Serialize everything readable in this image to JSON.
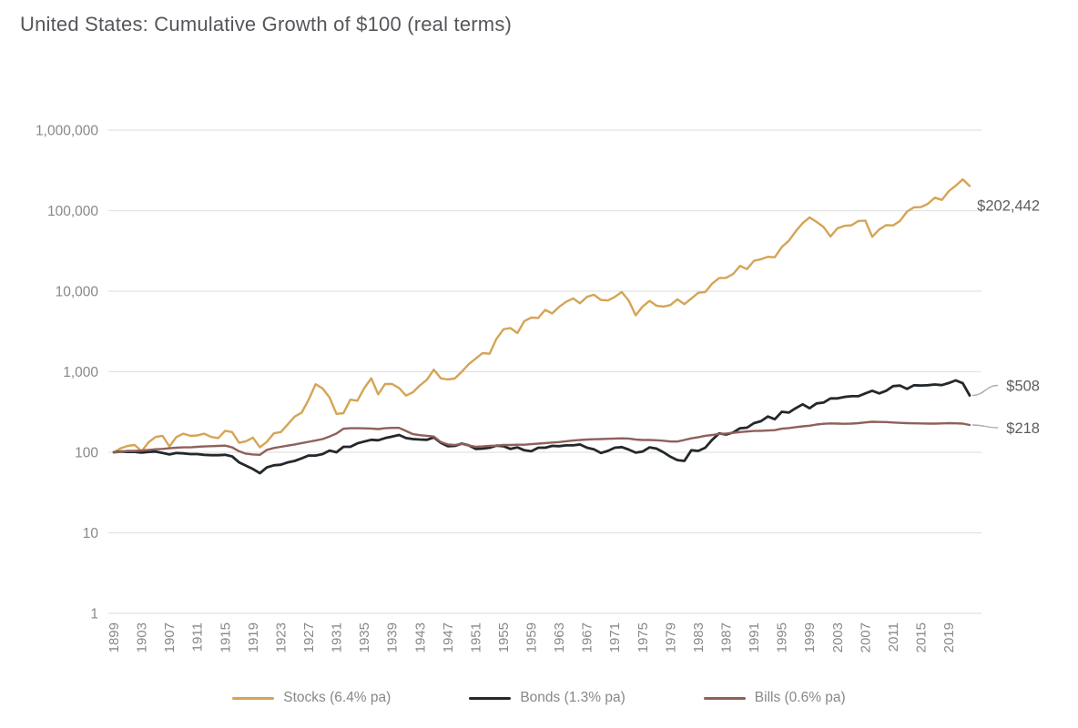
{
  "header": {
    "title": "United States: Cumulative Growth of $100 (real terms)"
  },
  "chart_data": {
    "type": "line",
    "title": "United States: Cumulative Growth of $100 (real terms)",
    "scale_y": "log",
    "grid": "horizontal-only",
    "legend_position": "bottom",
    "xlabel": "",
    "ylabel": "",
    "x_range": [
      1899,
      2022
    ],
    "x_tick_labels": [
      "1899",
      "1903",
      "1907",
      "1911",
      "1915",
      "1919",
      "1923",
      "1927",
      "1931",
      "1935",
      "1939",
      "1943",
      "1947",
      "1951",
      "1955",
      "1959",
      "1963",
      "1967",
      "1971",
      "1975",
      "1979",
      "1983",
      "1987",
      "1991",
      "1995",
      "1999",
      "2003",
      "2007",
      "2011",
      "2015",
      "2019"
    ],
    "y_tick_values": [
      1,
      10,
      100,
      1000,
      10000,
      100000,
      1000000
    ],
    "y_tick_labels": [
      "1",
      "10",
      "100",
      "1,000",
      "10,000",
      "100,000",
      "1,000,000"
    ],
    "ylim": [
      1,
      1000000
    ],
    "start_value": 100,
    "series": [
      {
        "name": "Stocks",
        "label": "Stocks (6.4% pa)",
        "rate": "6.4% pa",
        "color": "#D5A455",
        "end_label": "$202,442",
        "final_value": 202442,
        "values": [
          100,
          112,
          120,
          123,
          103,
          133,
          155,
          160,
          118,
          155,
          170,
          160,
          162,
          170,
          155,
          150,
          185,
          178,
          131,
          137,
          152,
          115,
          135,
          172,
          178,
          222,
          277,
          310,
          450,
          700,
          620,
          480,
          300,
          305,
          450,
          437,
          627,
          830,
          523,
          706,
          703,
          628,
          506,
          557,
          679,
          796,
          1062,
          826,
          802,
          824,
          997,
          1241,
          1452,
          1703,
          1674,
          2568,
          3367,
          3488,
          3024,
          4261,
          4700,
          4658,
          5869,
          5294,
          6395,
          7373,
          8140,
          7074,
          8517,
          9028,
          7782,
          7665,
          8478,
          9758,
          7660,
          5018,
          6438,
          7597,
          6594,
          6449,
          6739,
          7932,
          6917,
          8093,
          9558,
          9768,
          12396,
          14541,
          14657,
          16372,
          20613,
          18819,
          23825,
          24921,
          26715,
          26368,
          35390,
          42110,
          55250,
          69950,
          82400,
          72430,
          62800,
          47790,
          60360,
          64830,
          65740,
          74290,
          75250,
          47410,
          58360,
          66180,
          65580,
          74760,
          97490,
          109970,
          110740,
          121480,
          144930,
          135940,
          174680,
          204030,
          244840,
          202442
        ]
      },
      {
        "name": "Bonds",
        "label": "Bonds (1.3% pa)",
        "rate": "1.3% pa",
        "color": "#23282C",
        "end_label": "$508",
        "final_value": 508,
        "values": [
          100,
          102,
          101,
          101,
          99,
          101,
          102,
          98,
          94,
          98,
          97,
          95,
          95,
          93,
          92,
          92,
          93,
          89,
          75,
          68,
          62,
          55,
          65,
          69,
          70,
          75,
          78,
          84,
          91,
          91,
          95,
          105,
          100,
          117,
          117,
          129,
          136,
          143,
          141,
          150,
          157,
          164,
          150,
          146,
          144,
          143,
          153,
          131,
          119,
          120,
          128,
          122,
          110,
          111,
          114,
          121,
          119,
          110,
          115,
          106,
          103,
          114,
          114,
          120,
          119,
          122,
          122,
          125,
          114,
          109,
          98,
          104,
          114,
          116,
          108,
          99,
          102,
          115,
          111,
          100,
          88,
          80,
          78,
          106,
          104,
          114,
          143,
          172,
          166,
          176,
          199,
          202,
          230,
          243,
          278,
          257,
          318,
          311,
          352,
          394,
          352,
          404,
          414,
          466,
          466,
          487,
          497,
          497,
          538,
          580,
          538,
          580,
          663,
          673,
          612,
          680,
          673,
          680,
          694,
          683,
          725,
          780,
          720,
          508
        ]
      },
      {
        "name": "Bills",
        "label": "Bills (0.6% pa)",
        "rate": "0.6% pa",
        "color": "#8F6059",
        "end_label": "$218",
        "final_value": 218,
        "values": [
          100,
          102,
          104,
          104,
          105,
          107,
          109,
          110,
          112,
          114,
          115,
          115,
          117,
          118,
          119,
          120,
          121,
          115,
          103,
          96,
          94,
          93,
          107,
          113,
          117,
          121,
          125,
          130,
          135,
          140,
          146,
          157,
          171,
          196,
          199,
          199,
          198,
          197,
          194,
          199,
          201,
          201,
          184,
          168,
          163,
          160,
          157,
          134,
          125,
          123,
          127,
          122,
          117,
          118,
          120,
          121,
          123,
          123,
          124,
          124,
          126,
          128,
          130,
          132,
          134,
          137,
          140,
          142,
          144,
          145,
          146,
          147,
          148,
          149,
          148,
          144,
          142,
          142,
          141,
          139,
          136,
          136,
          142,
          149,
          154,
          160,
          164,
          169,
          171,
          174,
          178,
          181,
          184,
          185,
          186,
          188,
          196,
          200,
          205,
          210,
          214,
          221,
          226,
          228,
          227,
          226,
          227,
          230,
          235,
          239,
          238,
          237,
          234,
          232,
          230,
          229,
          228,
          227,
          227,
          228,
          230,
          229,
          227,
          218
        ]
      }
    ],
    "colors": {
      "grid": "#E2E2E2",
      "axis_text": "#87888B",
      "end_label_text": "#5B5C5F",
      "connector": "#ABABAB",
      "title_text": "#55565A"
    }
  }
}
